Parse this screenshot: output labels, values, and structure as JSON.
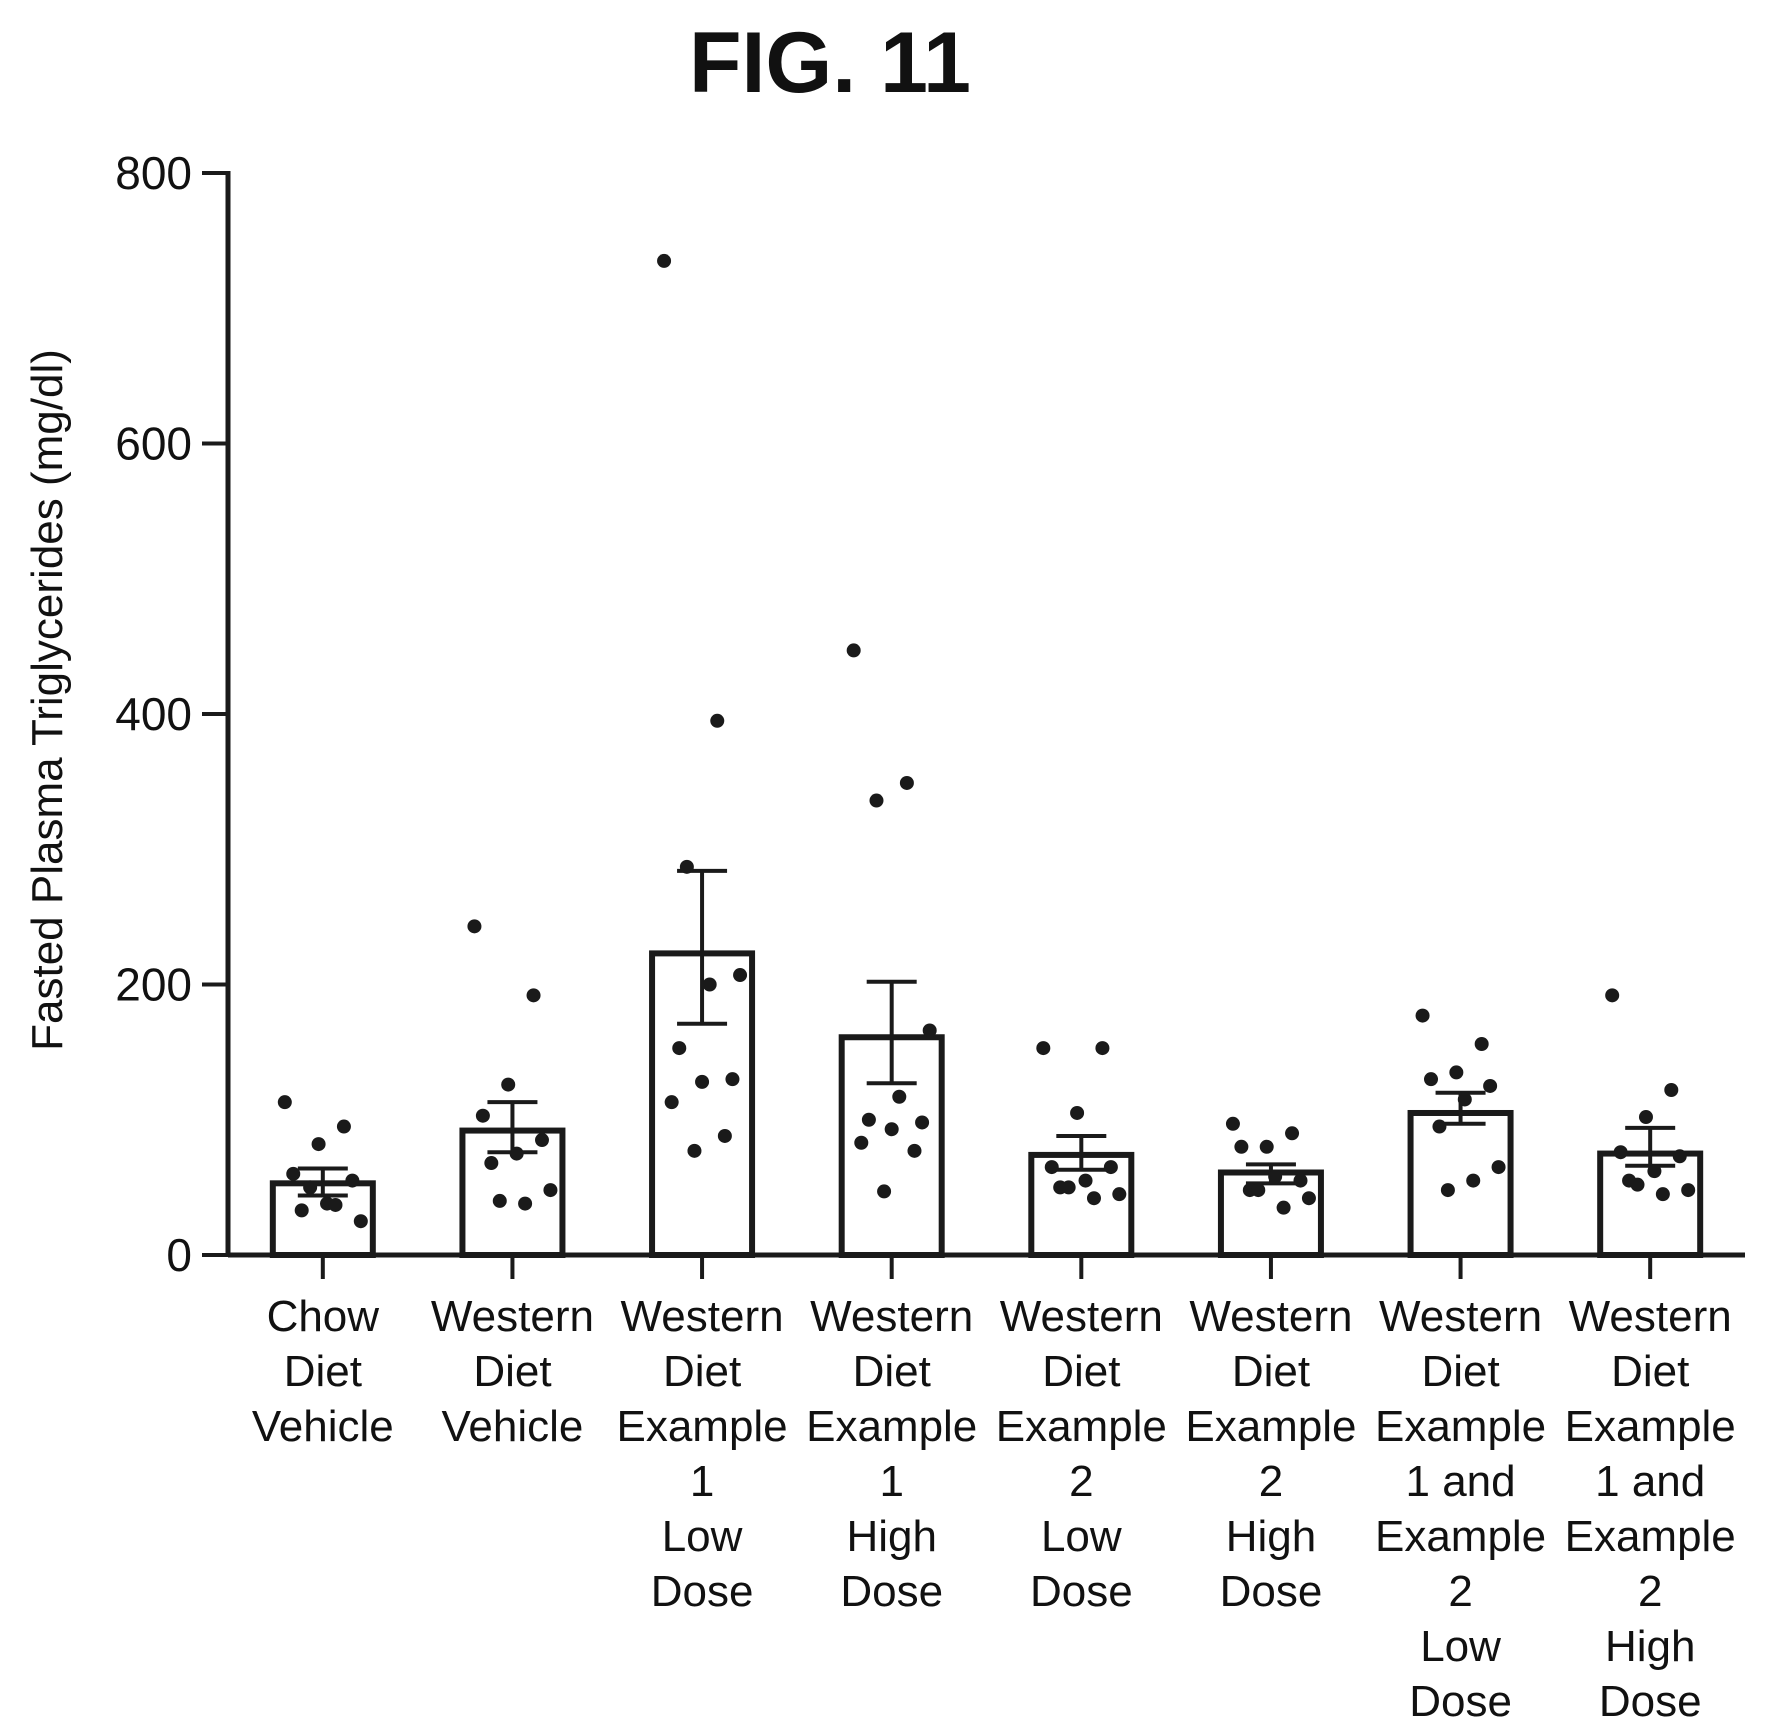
{
  "figure_label": "FIG. 11",
  "chart_data": {
    "type": "bar",
    "title": "FIG. 11",
    "ylabel": "Fasted Plasma Triglycerides (mg/dl)",
    "xlabel": "",
    "ylim": [
      0,
      800
    ],
    "yticks": [
      0,
      200,
      400,
      600,
      800
    ],
    "grid": false,
    "categories": [
      [
        "Chow",
        "Diet",
        "Vehicle"
      ],
      [
        "Western",
        "Diet",
        "Vehicle"
      ],
      [
        "Western",
        "Diet",
        "Example",
        "1",
        "Low",
        "Dose"
      ],
      [
        "Western",
        "Diet",
        "Example",
        "1",
        "High",
        "Dose"
      ],
      [
        "Western",
        "Diet",
        "Example",
        "2",
        "Low",
        "Dose"
      ],
      [
        "Western",
        "Diet",
        "Example",
        "2",
        "High",
        "Dose"
      ],
      [
        "Western",
        "Diet",
        "Example",
        "1 and",
        "Example",
        "2",
        "Low",
        "Dose"
      ],
      [
        "Western",
        "Diet",
        "Example",
        "1 and",
        "Example",
        "2",
        "High",
        "Dose"
      ]
    ],
    "values": [
      53,
      92,
      223,
      161,
      74,
      61,
      105,
      75
    ],
    "error_low": [
      44,
      76,
      171,
      127,
      63,
      53,
      97,
      66
    ],
    "error_high": [
      64,
      113,
      284,
      202,
      88,
      67,
      120,
      94
    ],
    "points": [
      [
        113,
        95,
        82,
        60,
        55,
        38,
        33,
        25,
        37,
        50
      ],
      [
        243,
        192,
        126,
        103,
        85,
        75,
        68,
        48,
        38,
        40
      ],
      [
        735,
        395,
        287,
        207,
        200,
        153,
        130,
        128,
        113,
        88,
        77
      ],
      [
        447,
        349,
        336,
        166,
        117,
        100,
        98,
        93,
        83,
        77,
        47
      ],
      [
        153,
        153,
        105,
        65,
        65,
        55,
        50,
        45,
        42,
        50
      ],
      [
        97,
        90,
        80,
        80,
        55,
        58,
        48,
        42,
        35,
        48
      ],
      [
        177,
        156,
        135,
        130,
        125,
        115,
        95,
        65,
        55,
        48
      ],
      [
        192,
        122,
        102,
        76,
        73,
        62,
        55,
        48,
        45,
        52
      ]
    ],
    "colors": {
      "ink": "#1a1a1a",
      "bar_fill": "#ffffff"
    }
  }
}
